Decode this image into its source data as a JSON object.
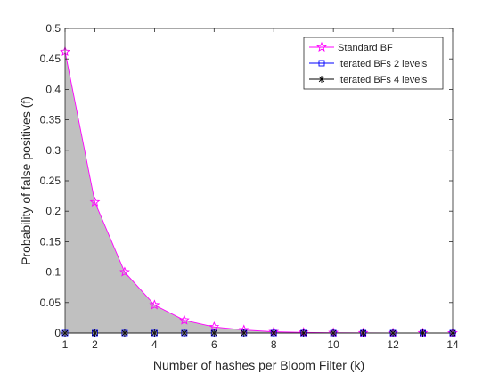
{
  "chart_data": {
    "type": "line",
    "title": "",
    "xlabel": "Number of hashes per Bloom Filter (k)",
    "ylabel": "Probability of false positives (f)",
    "xlim": [
      1,
      14
    ],
    "ylim": [
      0,
      0.5
    ],
    "xticks": [
      "1",
      "2",
      "4",
      "6",
      "8",
      "10",
      "12",
      "14"
    ],
    "yticks": [
      "0",
      "0.05",
      "0.1",
      "0.15",
      "0.2",
      "0.25",
      "0.3",
      "0.35",
      "0.4",
      "0.45",
      "0.5"
    ],
    "grid": false,
    "legend_position": "top-right",
    "x": [
      1,
      2,
      3,
      4,
      5,
      6,
      7,
      8,
      9,
      10,
      11,
      12,
      13,
      14
    ],
    "series": [
      {
        "name": "Standard BF",
        "color": "#ff00ff",
        "marker": "pentagram",
        "fill": "#c0c0c0",
        "values": [
          0.462,
          0.215,
          0.1,
          0.046,
          0.021,
          0.01,
          0.005,
          0.002,
          0.001,
          0.0005,
          0.0002,
          0.0001,
          0.0001,
          0.0
        ]
      },
      {
        "name": "Iterated BFs 2 levels",
        "color": "#0000ff",
        "marker": "square",
        "values": [
          0,
          0,
          0,
          0,
          0,
          0,
          0,
          0,
          0,
          0,
          0,
          0,
          0,
          0
        ]
      },
      {
        "name": "Iterated BFs 4 levels",
        "color": "#000000",
        "marker": "asterisk",
        "values": [
          0,
          0,
          0,
          0,
          0,
          0,
          0,
          0,
          0,
          0,
          0,
          0,
          0,
          0
        ]
      }
    ]
  }
}
